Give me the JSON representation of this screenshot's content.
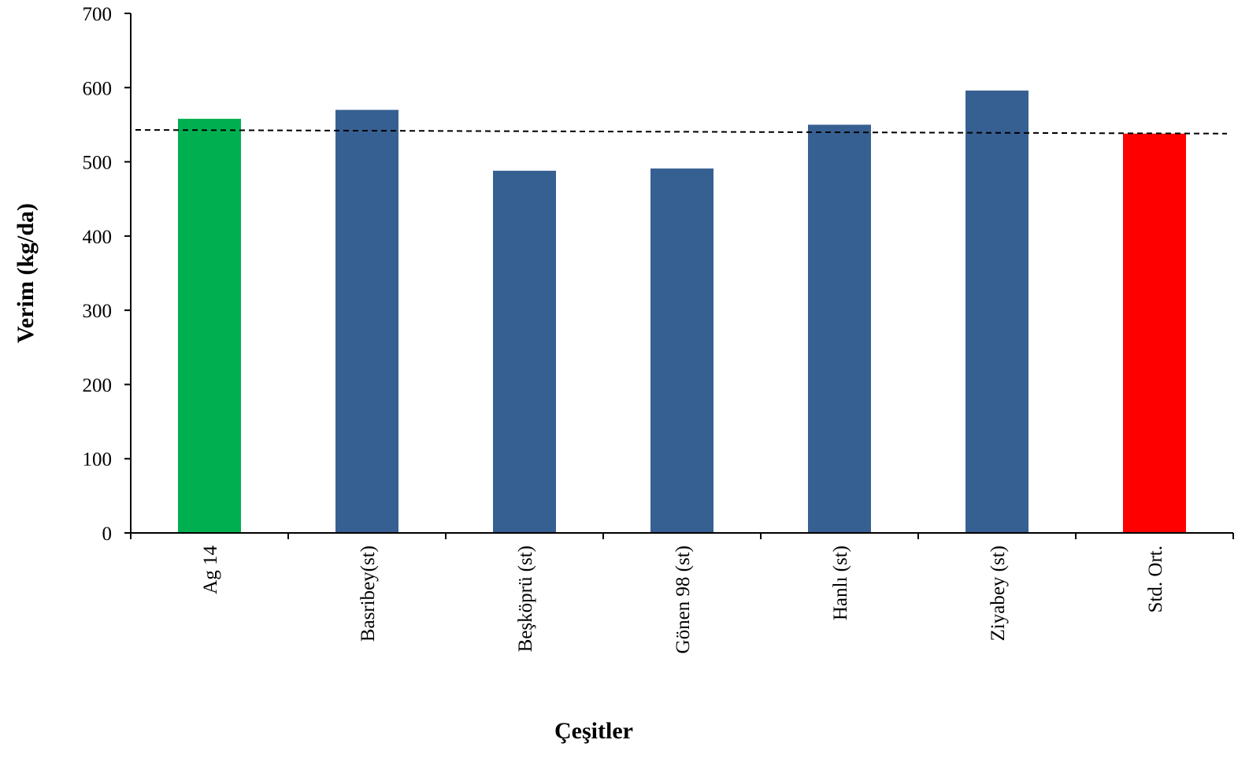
{
  "chart_data": {
    "type": "bar",
    "categories": [
      "Ag 14",
      "Basribey(st)",
      "Beşköprü (st)",
      "Gönen 98 (st)",
      "Hanlı (st)",
      "Ziyabey (st)",
      "Std. Ort."
    ],
    "values": [
      558,
      570,
      488,
      491,
      550,
      596,
      538
    ],
    "colors": [
      "#00b050",
      "#376092",
      "#376092",
      "#376092",
      "#376092",
      "#376092",
      "#ff0000"
    ],
    "title": "",
    "xlabel": "Çeşitler",
    "ylabel": "Verim (kg/da)",
    "ylim": [
      0,
      700
    ],
    "yticks": [
      "0",
      "100",
      "200",
      "300",
      "400",
      "500",
      "600",
      "700"
    ],
    "reference_line": {
      "style": "dashed",
      "y_start": 543,
      "y_end": 538
    },
    "grid": false,
    "legend": "none"
  }
}
